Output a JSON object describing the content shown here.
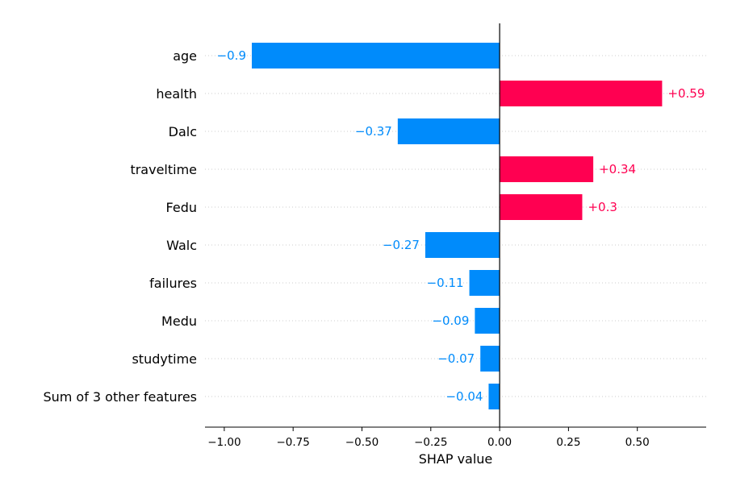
{
  "chart_data": {
    "type": "bar",
    "orientation": "horizontal",
    "xlabel": "SHAP value",
    "xlim": [
      -1.07,
      0.75
    ],
    "xticks": [
      -1.0,
      -0.75,
      -0.5,
      -0.25,
      0.0,
      0.25,
      0.5
    ],
    "xtick_labels": [
      "−1.00",
      "−0.75",
      "−0.50",
      "−0.25",
      "0.00",
      "0.25",
      "0.50"
    ],
    "grid": "dotted horizontal lines per feature",
    "categories": [
      "age",
      "health",
      "Dalc",
      "traveltime",
      "Fedu",
      "Walc",
      "failures",
      "Medu",
      "studytime",
      "Sum of 3 other features"
    ],
    "values": [
      -0.9,
      0.59,
      -0.37,
      0.34,
      0.3,
      -0.27,
      -0.11,
      -0.09,
      -0.07,
      -0.04
    ],
    "value_labels": [
      "−0.9",
      "+0.59",
      "−0.37",
      "+0.34",
      "+0.3",
      "−0.27",
      "−0.11",
      "−0.09",
      "−0.07",
      "−0.04"
    ],
    "colors": {
      "positive": "#ff0051",
      "negative": "#008bfb"
    }
  }
}
